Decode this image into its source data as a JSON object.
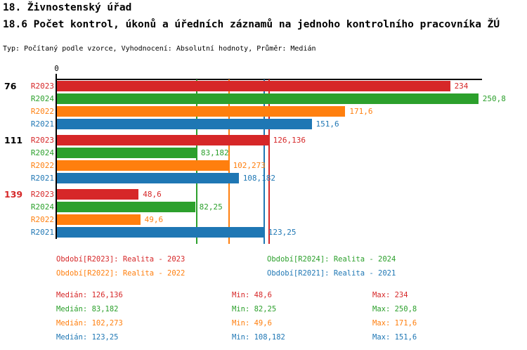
{
  "title": "18. Živnostenský úřad",
  "subtitle": "18.6 Počet kontrol, úkonů a úředních záznamů na jednoho kontrolního pracovníka ŽÚ",
  "meta": "Typ: Počítaný podle vzorce, Vyhodnocení: Absolutní hodnoty, Průměr: Medián",
  "chart_data": {
    "type": "bar",
    "orientation": "horizontal",
    "xlim": [
      0,
      253
    ],
    "grid": false,
    "x_ticks": [
      {
        "value": 0,
        "label": "0"
      }
    ],
    "axis_color": "#000000",
    "series_order": [
      "R2023",
      "R2024",
      "R2022",
      "R2021"
    ],
    "series_colors": {
      "R2023": "#d62728",
      "R2024": "#2ca02c",
      "R2022": "#ff7f0e",
      "R2021": "#1f77b4"
    },
    "groups": [
      {
        "label": "76",
        "label_color": "#000000",
        "bars": [
          {
            "series": "R2023",
            "value": 234,
            "value_label": "234"
          },
          {
            "series": "R2024",
            "value": 250.8,
            "value_label": "250,8"
          },
          {
            "series": "R2022",
            "value": 171.6,
            "value_label": "171,6"
          },
          {
            "series": "R2021",
            "value": 151.6,
            "value_label": "151,6"
          }
        ]
      },
      {
        "label": "111",
        "label_color": "#000000",
        "bars": [
          {
            "series": "R2023",
            "value": 126.136,
            "value_label": "126,136"
          },
          {
            "series": "R2024",
            "value": 83.182,
            "value_label": "83,182"
          },
          {
            "series": "R2022",
            "value": 102.273,
            "value_label": "102,273"
          },
          {
            "series": "R2021",
            "value": 108.182,
            "value_label": "108,182"
          }
        ]
      },
      {
        "label": "139",
        "label_color": "#d62728",
        "bars": [
          {
            "series": "R2023",
            "value": 48.6,
            "value_label": "48,6"
          },
          {
            "series": "R2024",
            "value": 82.25,
            "value_label": "82,25"
          },
          {
            "series": "R2022",
            "value": 49.6,
            "value_label": "49,6"
          },
          {
            "series": "R2021",
            "value": 123.25,
            "value_label": "123,25"
          }
        ]
      }
    ],
    "median_lines": [
      {
        "series": "R2023",
        "value": 126.136
      },
      {
        "series": "R2024",
        "value": 83.182
      },
      {
        "series": "R2022",
        "value": 102.273
      },
      {
        "series": "R2021",
        "value": 123.25
      }
    ]
  },
  "legend": {
    "items": [
      {
        "id": "R2023",
        "label": "Období[R2023]: Realita - 2023",
        "color": "#d62728"
      },
      {
        "id": "R2024",
        "label": "Období[R2024]: Realita - 2024",
        "color": "#2ca02c"
      },
      {
        "id": "R2022",
        "label": "Období[R2022]: Realita - 2022",
        "color": "#ff7f0e"
      },
      {
        "id": "R2021",
        "label": "Období[R2021]: Realita - 2021",
        "color": "#1f77b4"
      }
    ]
  },
  "stats": {
    "rows": [
      {
        "series": "R2023",
        "color": "#d62728",
        "median": "Medián: 126,136",
        "min": "Min: 48,6",
        "max": "Max: 234"
      },
      {
        "series": "R2024",
        "color": "#2ca02c",
        "median": "Medián: 83,182",
        "min": "Min: 82,25",
        "max": "Max: 250,8"
      },
      {
        "series": "R2022",
        "color": "#ff7f0e",
        "median": "Medián: 102,273",
        "min": "Min: 49,6",
        "max": "Max: 171,6"
      },
      {
        "series": "R2021",
        "color": "#1f77b4",
        "median": "Medián: 123,25",
        "min": "Min: 108,182",
        "max": "Max: 151,6"
      }
    ]
  }
}
